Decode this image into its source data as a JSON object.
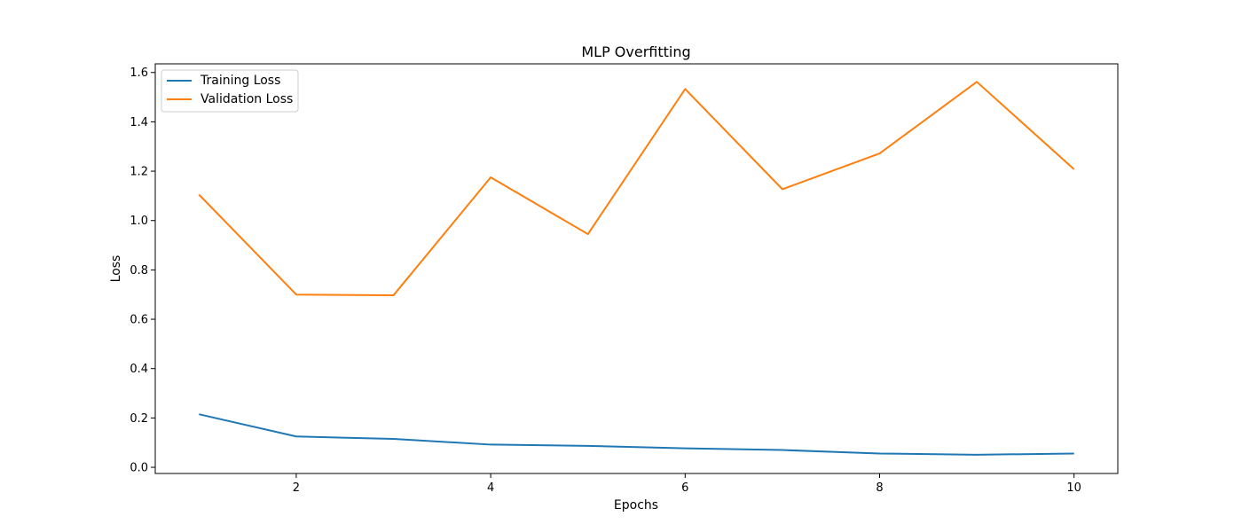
{
  "chart_data": {
    "type": "line",
    "title": "MLP Overfitting",
    "xlabel": "Epochs",
    "ylabel": "Loss",
    "x": [
      1,
      2,
      3,
      4,
      5,
      6,
      7,
      8,
      9,
      10
    ],
    "xlim": [
      0.55,
      10.45
    ],
    "ylim": [
      -0.025,
      1.635
    ],
    "xticks": [
      2,
      4,
      6,
      8,
      10
    ],
    "yticks": [
      0.0,
      0.2,
      0.4,
      0.6,
      0.8,
      1.0,
      1.2,
      1.4,
      1.6
    ],
    "grid": false,
    "legend_position": "top-left",
    "series": [
      {
        "name": "Training Loss",
        "color": "#1f77b4",
        "values": [
          0.215,
          0.125,
          0.115,
          0.092,
          0.087,
          0.077,
          0.07,
          0.056,
          0.051,
          0.056
        ]
      },
      {
        "name": "Validation Loss",
        "color": "#ff7f0e",
        "values": [
          1.105,
          0.7,
          0.697,
          1.175,
          0.945,
          1.533,
          1.127,
          1.272,
          1.562,
          1.208
        ]
      }
    ]
  }
}
